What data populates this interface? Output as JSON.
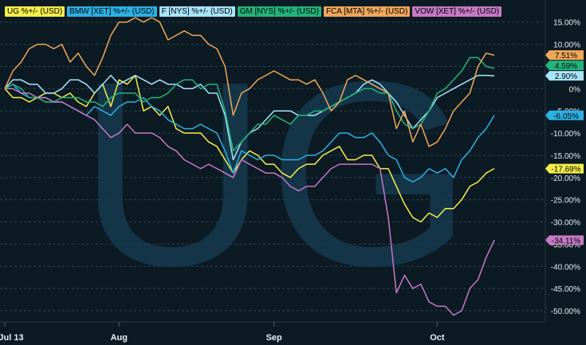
{
  "chart_data": {
    "type": "line",
    "watermark": "UG",
    "x_labels": [
      "Jul 13",
      "Aug",
      "Sep",
      "Oct"
    ],
    "x_label_index": [
      0,
      14,
      33,
      53
    ],
    "n_points": 61,
    "ylim": [
      -53,
      18
    ],
    "y_ticks": [
      15,
      10,
      5,
      0,
      -5,
      -10,
      -15,
      -20,
      -25,
      -30,
      -35,
      -40,
      -45,
      -50
    ],
    "y_tick_labels": [
      "15.00%",
      "10.00%",
      "5.00%",
      "0%",
      "-5.00%",
      "-10.00%",
      "-15.00%",
      "-20.00%",
      "-25.00%",
      "-30.00%",
      "-35.00%",
      "-40.00%",
      "-45.00%",
      "-50.00%"
    ],
    "grid": true,
    "legend_position": "top-left",
    "series": [
      {
        "name": "UG %+/- (USD)",
        "color": "#f5ef4a",
        "end_label": "-17.69%",
        "values": [
          0,
          -2,
          -2,
          -3,
          -2,
          -1,
          -1,
          -2,
          -1,
          -3,
          -4,
          -1,
          1,
          -4,
          2,
          1,
          3,
          -5,
          -4,
          -6,
          -4,
          -9,
          -10,
          -10,
          -10,
          -12,
          -13,
          -16,
          -19,
          -16,
          -14,
          -15,
          -17,
          -17,
          -19,
          -20,
          -18,
          -17,
          -17,
          -15,
          -14,
          -13,
          -16,
          -16,
          -15,
          -15,
          -18,
          -18,
          -22,
          -26,
          -29,
          -30,
          -28,
          -29,
          -27,
          -27,
          -25,
          -22,
          -21,
          -19,
          -18
        ]
      },
      {
        "name": "BMW [XET] %+/- (USD)",
        "color": "#2bb1e4",
        "end_label": "-6.05%",
        "values": [
          0,
          1,
          -1,
          -2,
          -2,
          -2,
          -3,
          -3,
          -4,
          -5,
          -6,
          -4,
          -5,
          -6,
          -4,
          -3,
          -3,
          -2,
          -4,
          -5,
          -7,
          -8,
          -9,
          -9,
          -8,
          -9,
          -10,
          -14,
          -19,
          -14,
          -15,
          -16,
          -15,
          -15,
          -16,
          -16,
          -16,
          -15,
          -15,
          -14,
          -12,
          -10,
          -10,
          -11,
          -11,
          -10,
          -12,
          -15,
          -16,
          -20,
          -21,
          -20,
          -18,
          -19,
          -18,
          -20,
          -16,
          -14,
          -11,
          -9,
          -6
        ]
      },
      {
        "name": "F [NYS] %+/- (USD)",
        "color": "#a8e4fb",
        "end_label": "2.90%",
        "values": [
          0,
          2,
          2,
          1,
          1,
          -1,
          -1,
          0,
          2,
          2,
          1,
          -1,
          1,
          3,
          1,
          2,
          3,
          2,
          1,
          2,
          1,
          1,
          0,
          0,
          1,
          -1,
          -1,
          -6,
          -16,
          -12,
          -10,
          -9,
          -7,
          -5,
          -5,
          -5,
          -6,
          -6,
          -6,
          -5,
          -4,
          -3,
          -2,
          -1,
          1,
          2,
          1,
          -1,
          -3,
          -6,
          -9,
          -7,
          -5,
          -2,
          -1,
          0,
          1,
          2,
          3,
          3,
          2.9
        ]
      },
      {
        "name": "GM [NYS] %+/- (USD)",
        "color": "#21b47c",
        "end_label": "4.59%",
        "values": [
          0,
          1,
          0,
          -2,
          -2,
          -3,
          -3,
          -2,
          -2,
          -2,
          -3,
          -3,
          -4,
          -2,
          -1,
          -1,
          -1,
          -3,
          -2,
          -2,
          -1,
          1,
          2,
          2,
          0,
          1,
          1,
          -5,
          -14,
          -12,
          -10,
          -8,
          -8,
          -6,
          -7,
          -8,
          -6,
          -6,
          -5,
          -5,
          -4,
          -3,
          -2,
          -1,
          0,
          0,
          -1,
          -1,
          -5,
          -8,
          -9,
          -8,
          -5,
          -1,
          0,
          2,
          4,
          7,
          7,
          5,
          4.59
        ]
      },
      {
        "name": "FCA [MTA] %+/- (USD)",
        "color": "#f0a759",
        "end_label": "7.51%",
        "values": [
          0,
          4,
          6,
          9,
          10,
          10,
          9,
          10,
          6,
          8,
          5,
          3,
          7,
          12,
          15,
          15,
          16,
          15,
          16,
          15,
          11,
          12,
          13,
          12,
          12,
          10,
          9,
          5,
          -6,
          -1,
          0,
          2,
          3,
          4,
          3,
          2,
          2,
          1,
          2,
          -1,
          -5,
          -3,
          2,
          3,
          2,
          1,
          0,
          -1,
          -9,
          -5,
          -12,
          -8,
          -13,
          -12,
          -9,
          -5,
          -3,
          -1,
          5,
          8,
          7.51
        ]
      },
      {
        "name": "VOW [XET] %+/- (USD)",
        "color": "#c57ac3",
        "end_label": "-34.11%",
        "values": [
          0,
          0,
          -1,
          -1,
          -2,
          -2,
          -3,
          -3,
          -4,
          -5,
          -6,
          -7,
          -9,
          -11,
          -10,
          -8,
          -10,
          -10,
          -10,
          -11,
          -13,
          -14,
          -16,
          -17,
          -18,
          -17,
          -18,
          -19,
          -20,
          -16,
          -17,
          -18,
          -19,
          -19,
          -20,
          -22,
          -23,
          -22,
          -22,
          -20,
          -18,
          -17,
          -17,
          -17,
          -17,
          -17,
          -18,
          -29,
          -46,
          -42,
          -45,
          -44,
          -48,
          -49,
          -49,
          -51,
          -50,
          -45,
          -43,
          -38,
          -34.11
        ]
      }
    ]
  }
}
